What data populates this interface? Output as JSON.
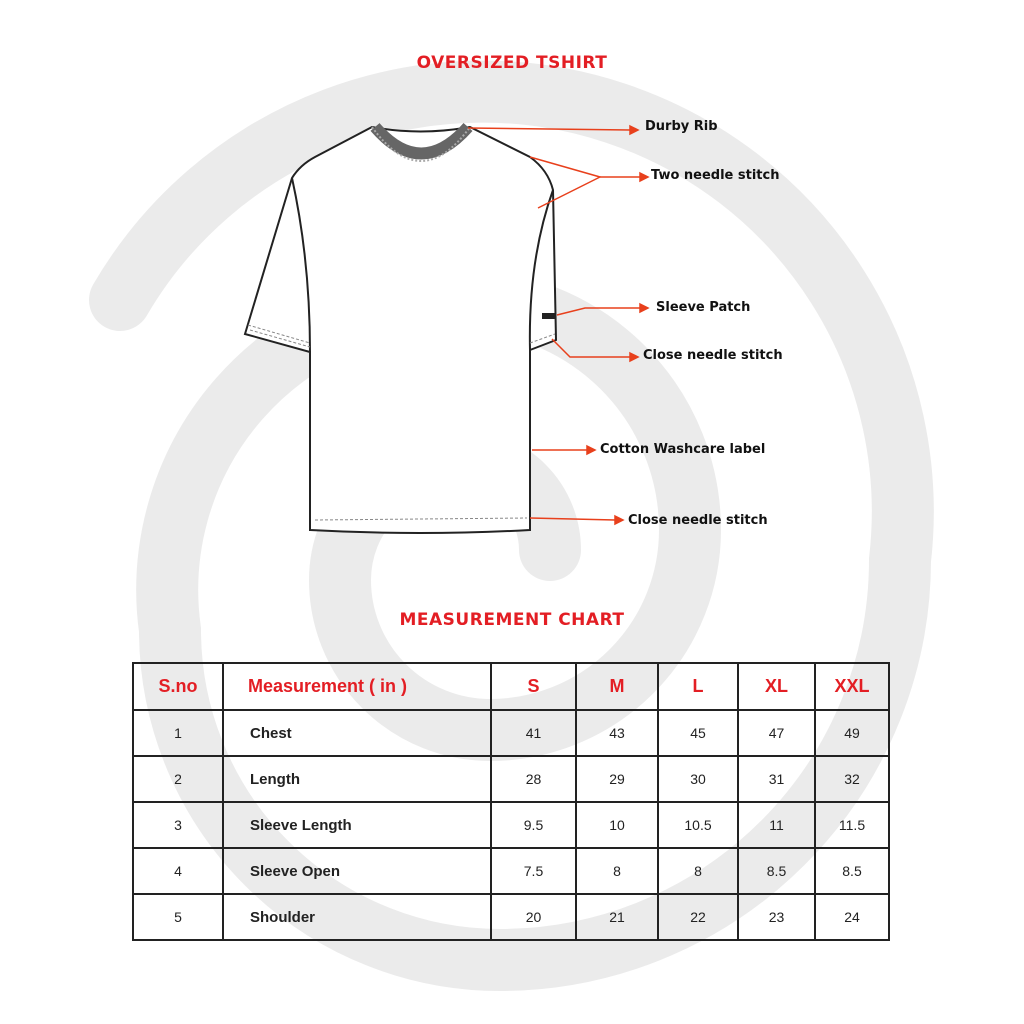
{
  "title": "OVERSIZED TSHIRT",
  "colors": {
    "accent": "#e31e24",
    "background_spiral": "#ebebeb"
  },
  "callouts": [
    {
      "label": "Durby Rib"
    },
    {
      "label": "Two needle stitch"
    },
    {
      "label": "Sleeve Patch"
    },
    {
      "label": "Close needle stitch"
    },
    {
      "label": "Cotton Washcare label"
    },
    {
      "label": "Close needle stitch"
    }
  ],
  "chart_title": "MEASUREMENT CHART",
  "table": {
    "headers": [
      "S.no",
      "Measurement (  in )",
      "S",
      "M",
      "L",
      "XL",
      "XXL"
    ],
    "rows": [
      [
        "1",
        "Chest",
        "41",
        "43",
        "45",
        "47",
        "49"
      ],
      [
        "2",
        "Length",
        "28",
        "29",
        "30",
        "31",
        "32"
      ],
      [
        "3",
        "Sleeve Length",
        "9.5",
        "10",
        "10.5",
        "11",
        "11.5"
      ],
      [
        "4",
        "Sleeve Open",
        "7.5",
        "8",
        "8",
        "8.5",
        "8.5"
      ],
      [
        "5",
        "Shoulder",
        "20",
        "21",
        "22",
        "23",
        "24"
      ]
    ]
  }
}
